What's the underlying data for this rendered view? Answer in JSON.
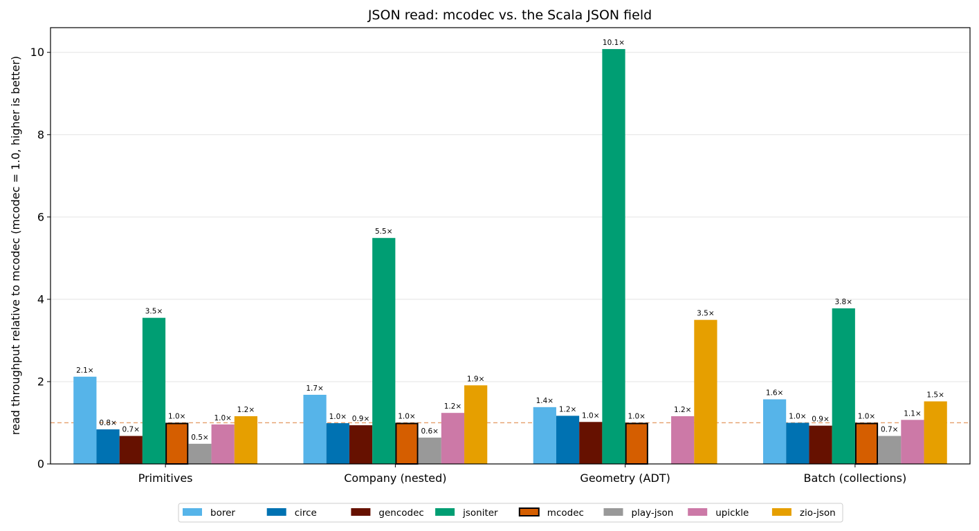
{
  "chart_data": {
    "type": "bar",
    "title": "JSON read: mcodec vs. the Scala JSON field",
    "xlabel": "",
    "ylabel": "read throughput relative to mcodec  (mcodec = 1.0, higher is better)",
    "ylim": [
      0,
      10.6
    ],
    "yticks": [
      0,
      2,
      4,
      6,
      8,
      10
    ],
    "grid": "horizontal",
    "legend_position": "bottom-center",
    "reference_line": {
      "value": 1.0,
      "style": "dashed",
      "color": "#E69F6B"
    },
    "highlight_series": "mcodec",
    "categories": [
      "Primitives",
      "Company (nested)",
      "Geometry (ADT)",
      "Batch (collections)"
    ],
    "series": [
      {
        "name": "borer",
        "color": "#56B4E9",
        "values": [
          2.12,
          1.68,
          1.38,
          1.57
        ],
        "labels": [
          "2.1×",
          "1.7×",
          "1.4×",
          "1.6×"
        ]
      },
      {
        "name": "circe",
        "color": "#0072B2",
        "values": [
          0.84,
          0.99,
          1.17,
          1.0
        ],
        "labels": [
          "0.8×",
          "1.0×",
          "1.2×",
          "1.0×"
        ]
      },
      {
        "name": "gencodec",
        "color": "#661100",
        "values": [
          0.68,
          0.94,
          1.02,
          0.93
        ],
        "labels": [
          "0.7×",
          "0.9×",
          "1.0×",
          "0.9×"
        ]
      },
      {
        "name": "jsoniter",
        "color": "#009E73",
        "values": [
          3.55,
          5.49,
          10.08,
          3.78
        ],
        "labels": [
          "3.5×",
          "5.5×",
          "10.1×",
          "3.8×"
        ]
      },
      {
        "name": "mcodec",
        "color": "#D55E00",
        "values": [
          1.0,
          1.0,
          1.0,
          1.0
        ],
        "labels": [
          "1.0×",
          "1.0×",
          "1.0×",
          "1.0×"
        ]
      },
      {
        "name": "play-json",
        "color": "#999999",
        "values": [
          0.49,
          0.64,
          null,
          0.68
        ],
        "labels": [
          "0.5×",
          "0.6×",
          "",
          "0.7×"
        ]
      },
      {
        "name": "upickle",
        "color": "#CC79A7",
        "values": [
          0.96,
          1.24,
          1.16,
          1.07
        ],
        "labels": [
          "1.0×",
          "1.2×",
          "1.2×",
          "1.1×"
        ]
      },
      {
        "name": "zio-json",
        "color": "#E69F00",
        "values": [
          1.16,
          1.91,
          3.5,
          1.52
        ],
        "labels": [
          "1.2×",
          "1.9×",
          "3.5×",
          "1.5×"
        ]
      }
    ]
  }
}
